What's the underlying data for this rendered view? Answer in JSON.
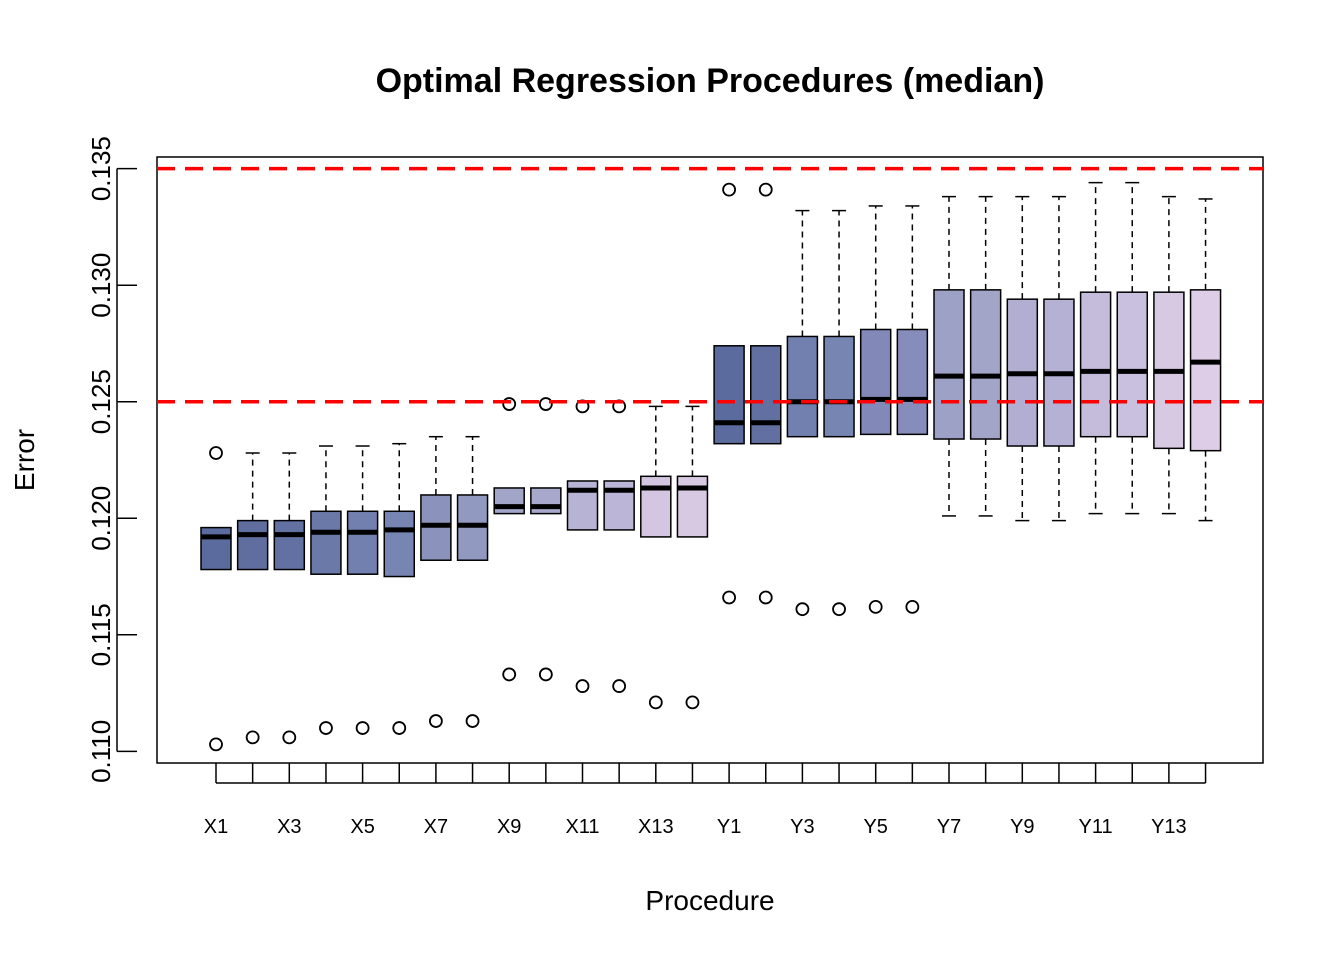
{
  "chart_data": {
    "type": "boxplot",
    "title": "Optimal Regression Procedures (median)",
    "xlabel": "Procedure",
    "ylabel": "Error",
    "ylim": [
      0.1095,
      0.1355
    ],
    "yticks": [
      "0.110",
      "0.115",
      "0.120",
      "0.125",
      "0.130",
      "0.135"
    ],
    "yticks_values": [
      0.11,
      0.115,
      0.12,
      0.125,
      0.13,
      0.135
    ],
    "reference_lines": [
      {
        "value": 0.135,
        "color": "#ff0000",
        "style": "dashed"
      },
      {
        "value": 0.125,
        "color": "#ff0000",
        "style": "dashed"
      }
    ],
    "categories": [
      "X1",
      "X2",
      "X3",
      "X4",
      "X5",
      "X6",
      "X7",
      "X8",
      "X9",
      "X10",
      "X11",
      "X12",
      "X13",
      "X14",
      "Y1",
      "Y2",
      "Y3",
      "Y4",
      "Y5",
      "Y6",
      "Y7",
      "Y8",
      "Y9",
      "Y10",
      "Y11",
      "Y12",
      "Y13",
      "Y14"
    ],
    "visible_x_labels": [
      "X1",
      "X3",
      "X5",
      "X7",
      "X9",
      "X11",
      "X13",
      "Y1",
      "Y3",
      "Y5",
      "Y7",
      "Y9",
      "Y11",
      "Y13"
    ],
    "boxes": [
      {
        "name": "X1",
        "color": "#5b6b9d",
        "whisker_low": 0.1178,
        "q1": 0.1178,
        "median": 0.1192,
        "q3": 0.1196,
        "whisker_high": 0.1196,
        "outliers": [
          0.1228,
          0.1103
        ]
      },
      {
        "name": "X2",
        "color": "#5f6d9f",
        "whisker_low": 0.1178,
        "q1": 0.1178,
        "median": 0.1193,
        "q3": 0.1199,
        "whisker_high": 0.1228,
        "outliers": [
          0.1106
        ]
      },
      {
        "name": "X3",
        "color": "#6371a2",
        "whisker_low": 0.1178,
        "q1": 0.1178,
        "median": 0.1193,
        "q3": 0.1199,
        "whisker_high": 0.1228,
        "outliers": [
          0.1106
        ]
      },
      {
        "name": "X4",
        "color": "#6b79a9",
        "whisker_low": 0.1176,
        "q1": 0.1176,
        "median": 0.1194,
        "q3": 0.1203,
        "whisker_high": 0.1231,
        "outliers": [
          0.111
        ]
      },
      {
        "name": "X5",
        "color": "#7280b0",
        "whisker_low": 0.1176,
        "q1": 0.1176,
        "median": 0.1194,
        "q3": 0.1203,
        "whisker_high": 0.1231,
        "outliers": [
          0.111
        ]
      },
      {
        "name": "X6",
        "color": "#7785b3",
        "whisker_low": 0.1175,
        "q1": 0.1175,
        "median": 0.1195,
        "q3": 0.1203,
        "whisker_high": 0.1232,
        "outliers": [
          0.111
        ]
      },
      {
        "name": "X7",
        "color": "#8b93bc",
        "whisker_low": 0.1182,
        "q1": 0.1182,
        "median": 0.1197,
        "q3": 0.121,
        "whisker_high": 0.1235,
        "outliers": [
          0.1113
        ]
      },
      {
        "name": "X8",
        "color": "#9299c1",
        "whisker_low": 0.1182,
        "q1": 0.1182,
        "median": 0.1197,
        "q3": 0.121,
        "whisker_high": 0.1235,
        "outliers": [
          0.1113
        ]
      },
      {
        "name": "X9",
        "color": "#a2a4c8",
        "whisker_low": 0.1202,
        "q1": 0.1202,
        "median": 0.1205,
        "q3": 0.1213,
        "whisker_high": 0.1213,
        "outliers": [
          0.1249,
          0.1133
        ]
      },
      {
        "name": "X10",
        "color": "#a7a8cc",
        "whisker_low": 0.1202,
        "q1": 0.1202,
        "median": 0.1205,
        "q3": 0.1213,
        "whisker_high": 0.1213,
        "outliers": [
          0.1249,
          0.1133
        ]
      },
      {
        "name": "X11",
        "color": "#b7b3d5",
        "whisker_low": 0.1195,
        "q1": 0.1195,
        "median": 0.1212,
        "q3": 0.1216,
        "whisker_high": 0.1216,
        "outliers": [
          0.1248,
          0.1128
        ]
      },
      {
        "name": "X12",
        "color": "#bbb6d8",
        "whisker_low": 0.1195,
        "q1": 0.1195,
        "median": 0.1212,
        "q3": 0.1216,
        "whisker_high": 0.1216,
        "outliers": [
          0.1248,
          0.1128
        ]
      },
      {
        "name": "X13",
        "color": "#d4c6e0",
        "whisker_low": 0.1192,
        "q1": 0.1192,
        "median": 0.1213,
        "q3": 0.1218,
        "whisker_high": 0.1248,
        "outliers": [
          0.1121
        ]
      },
      {
        "name": "X14",
        "color": "#d8c9e2",
        "whisker_low": 0.1192,
        "q1": 0.1192,
        "median": 0.1213,
        "q3": 0.1218,
        "whisker_high": 0.1248,
        "outliers": [
          0.1121
        ]
      },
      {
        "name": "Y1",
        "color": "#5b6b9d",
        "whisker_low": 0.1232,
        "q1": 0.1232,
        "median": 0.1241,
        "q3": 0.1274,
        "whisker_high": 0.1274,
        "outliers": [
          0.1341,
          0.1166
        ]
      },
      {
        "name": "Y2",
        "color": "#6270a1",
        "whisker_low": 0.1232,
        "q1": 0.1232,
        "median": 0.1241,
        "q3": 0.1274,
        "whisker_high": 0.1274,
        "outliers": [
          0.1341,
          0.1166
        ]
      },
      {
        "name": "Y3",
        "color": "#7280b0",
        "whisker_low": 0.1235,
        "q1": 0.1235,
        "median": 0.125,
        "q3": 0.1278,
        "whisker_high": 0.1332,
        "outliers": [
          0.1161
        ]
      },
      {
        "name": "Y4",
        "color": "#7785b3",
        "whisker_low": 0.1235,
        "q1": 0.1235,
        "median": 0.125,
        "q3": 0.1278,
        "whisker_high": 0.1332,
        "outliers": [
          0.1161
        ]
      },
      {
        "name": "Y5",
        "color": "#8289b8",
        "whisker_low": 0.1236,
        "q1": 0.1236,
        "median": 0.1251,
        "q3": 0.1281,
        "whisker_high": 0.1334,
        "outliers": [
          0.1162
        ]
      },
      {
        "name": "Y6",
        "color": "#878dbb",
        "whisker_low": 0.1236,
        "q1": 0.1236,
        "median": 0.1251,
        "q3": 0.1281,
        "whisker_high": 0.1334,
        "outliers": [
          0.1162
        ]
      },
      {
        "name": "Y7",
        "color": "#9ea1c6",
        "whisker_low": 0.1201,
        "q1": 0.1234,
        "median": 0.1261,
        "q3": 0.1298,
        "whisker_high": 0.1338,
        "outliers": []
      },
      {
        "name": "Y8",
        "color": "#a2a4c8",
        "whisker_low": 0.1201,
        "q1": 0.1234,
        "median": 0.1261,
        "q3": 0.1298,
        "whisker_high": 0.1338,
        "outliers": []
      },
      {
        "name": "Y9",
        "color": "#b1aed1",
        "whisker_low": 0.1199,
        "q1": 0.1231,
        "median": 0.1262,
        "q3": 0.1294,
        "whisker_high": 0.1338,
        "outliers": []
      },
      {
        "name": "Y10",
        "color": "#b5b1d4",
        "whisker_low": 0.1199,
        "q1": 0.1231,
        "median": 0.1262,
        "q3": 0.1294,
        "whisker_high": 0.1338,
        "outliers": []
      },
      {
        "name": "Y11",
        "color": "#c5bcdc",
        "whisker_low": 0.1202,
        "q1": 0.1235,
        "median": 0.1263,
        "q3": 0.1297,
        "whisker_high": 0.1344,
        "outliers": []
      },
      {
        "name": "Y12",
        "color": "#c9bfdf",
        "whisker_low": 0.1202,
        "q1": 0.1235,
        "median": 0.1263,
        "q3": 0.1297,
        "whisker_high": 0.1344,
        "outliers": []
      },
      {
        "name": "Y13",
        "color": "#d8c9e2",
        "whisker_low": 0.1202,
        "q1": 0.123,
        "median": 0.1263,
        "q3": 0.1297,
        "whisker_high": 0.1338,
        "outliers": []
      },
      {
        "name": "Y14",
        "color": "#ddcde6",
        "whisker_low": 0.1199,
        "q1": 0.1229,
        "median": 0.1267,
        "q3": 0.1298,
        "whisker_high": 0.1337,
        "outliers": []
      }
    ],
    "grid": false,
    "legend": "none"
  }
}
